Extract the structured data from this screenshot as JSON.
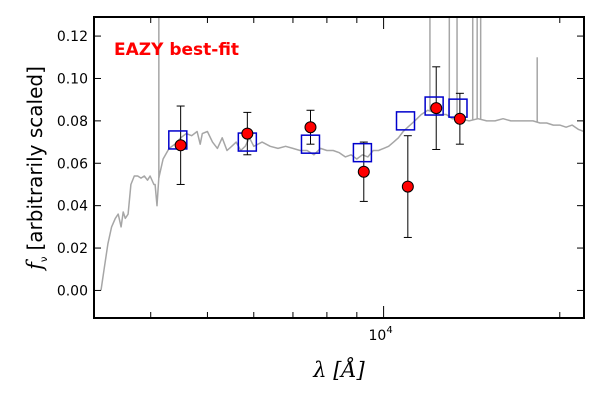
{
  "chart_data": {
    "type": "scatter",
    "title": "",
    "xlabel": "λ [Å]",
    "ylabel_symbol": "f_ν",
    "ylabel": "[arbitrarily scaled]",
    "xscale": "log",
    "xlim": [
      3200,
      22000
    ],
    "ylim": [
      -0.013,
      0.129
    ],
    "y_ticks": [
      0.0,
      0.02,
      0.04,
      0.06,
      0.08,
      0.1,
      0.12
    ],
    "y_tick_labels": [
      "0.00",
      "0.02",
      "0.04",
      "0.06",
      "0.08",
      "0.10",
      "0.12"
    ],
    "x_tick_labels": [
      {
        "value": 10000,
        "base": "10",
        "exponent": "4"
      }
    ],
    "annotation": {
      "text": "EAZY best-fit",
      "color": "#ff0000",
      "placement": "top-left"
    },
    "colors": {
      "observed": "#ff0000",
      "model_box": "#0000cc",
      "spectrum": "#a6a6a6"
    },
    "observed": [
      {
        "x": 4500,
        "y": 0.0685,
        "err": 0.0185
      },
      {
        "x": 5850,
        "y": 0.074,
        "err": 0.01
      },
      {
        "x": 7500,
        "y": 0.077,
        "err": 0.008
      },
      {
        "x": 9250,
        "y": 0.056,
        "err": 0.014
      },
      {
        "x": 11000,
        "y": 0.049,
        "err": 0.024
      },
      {
        "x": 12300,
        "y": 0.086,
        "err": 0.0195
      },
      {
        "x": 13500,
        "y": 0.081,
        "err": 0.012
      }
    ],
    "model_photometry": [
      {
        "x": 4450,
        "y": 0.071
      },
      {
        "x": 5850,
        "y": 0.07
      },
      {
        "x": 7500,
        "y": 0.069
      },
      {
        "x": 9200,
        "y": 0.065
      },
      {
        "x": 10900,
        "y": 0.08
      },
      {
        "x": 12200,
        "y": 0.087
      },
      {
        "x": 13400,
        "y": 0.086
      }
    ],
    "spectrum": [
      [
        3290,
        0.0
      ],
      [
        3330,
        0.01
      ],
      [
        3380,
        0.022
      ],
      [
        3430,
        0.03
      ],
      [
        3480,
        0.034
      ],
      [
        3520,
        0.036
      ],
      [
        3560,
        0.03
      ],
      [
        3590,
        0.037
      ],
      [
        3620,
        0.034
      ],
      [
        3660,
        0.036
      ],
      [
        3700,
        0.05
      ],
      [
        3750,
        0.054
      ],
      [
        3800,
        0.054
      ],
      [
        3850,
        0.053
      ],
      [
        3900,
        0.054
      ],
      [
        3950,
        0.052
      ],
      [
        3990,
        0.054
      ],
      [
        4050,
        0.05
      ],
      [
        4070,
        0.05
      ],
      [
        4100,
        0.04
      ],
      [
        4130,
        0.053
      ],
      [
        4200,
        0.062
      ],
      [
        4300,
        0.067
      ],
      [
        4400,
        0.069
      ],
      [
        4500,
        0.072
      ],
      [
        4600,
        0.074
      ],
      [
        4700,
        0.073
      ],
      [
        4800,
        0.075
      ],
      [
        4860,
        0.069
      ],
      [
        4900,
        0.074
      ],
      [
        5000,
        0.075
      ],
      [
        5100,
        0.07
      ],
      [
        5200,
        0.067
      ],
      [
        5300,
        0.072
      ],
      [
        5400,
        0.066
      ],
      [
        5500,
        0.068
      ],
      [
        5600,
        0.07
      ],
      [
        5700,
        0.066
      ],
      [
        5800,
        0.068
      ],
      [
        5900,
        0.072
      ],
      [
        6000,
        0.068
      ],
      [
        6200,
        0.07
      ],
      [
        6400,
        0.068
      ],
      [
        6600,
        0.067
      ],
      [
        6800,
        0.068
      ],
      [
        7000,
        0.067
      ],
      [
        7200,
        0.066
      ],
      [
        7400,
        0.066
      ],
      [
        7600,
        0.064
      ],
      [
        7800,
        0.067
      ],
      [
        8000,
        0.066
      ],
      [
        8200,
        0.066
      ],
      [
        8400,
        0.065
      ],
      [
        8600,
        0.063
      ],
      [
        8800,
        0.064
      ],
      [
        9000,
        0.062
      ],
      [
        9200,
        0.064
      ],
      [
        9400,
        0.063
      ],
      [
        9600,
        0.066
      ],
      [
        9800,
        0.066
      ],
      [
        10000,
        0.067
      ],
      [
        10200,
        0.068
      ],
      [
        10400,
        0.07
      ],
      [
        10600,
        0.072
      ],
      [
        10800,
        0.075
      ],
      [
        11000,
        0.077
      ],
      [
        11300,
        0.08
      ],
      [
        11600,
        0.083
      ],
      [
        11900,
        0.085
      ],
      [
        12200,
        0.084
      ],
      [
        12500,
        0.083
      ],
      [
        12800,
        0.083
      ],
      [
        13100,
        0.081
      ],
      [
        13500,
        0.081
      ],
      [
        14000,
        0.08
      ],
      [
        14500,
        0.081
      ],
      [
        15000,
        0.08
      ],
      [
        15500,
        0.08
      ],
      [
        16000,
        0.081
      ],
      [
        16500,
        0.08
      ],
      [
        17000,
        0.08
      ],
      [
        17500,
        0.08
      ],
      [
        18000,
        0.08
      ],
      [
        18500,
        0.079
      ],
      [
        19000,
        0.079
      ],
      [
        19500,
        0.078
      ],
      [
        20000,
        0.078
      ],
      [
        20500,
        0.077
      ],
      [
        21000,
        0.078
      ],
      [
        21500,
        0.076
      ],
      [
        22000,
        0.075
      ]
    ],
    "emission_lines": [
      {
        "x": 4130,
        "peak": 0.129
      },
      {
        "x": 12000,
        "peak": 0.129
      },
      {
        "x": 12950,
        "peak": 0.129
      },
      {
        "x": 13350,
        "peak": 0.129
      },
      {
        "x": 14200,
        "peak": 0.129
      },
      {
        "x": 14450,
        "peak": 0.129
      },
      {
        "x": 14650,
        "peak": 0.129
      },
      {
        "x": 18300,
        "peak": 0.11
      }
    ]
  }
}
